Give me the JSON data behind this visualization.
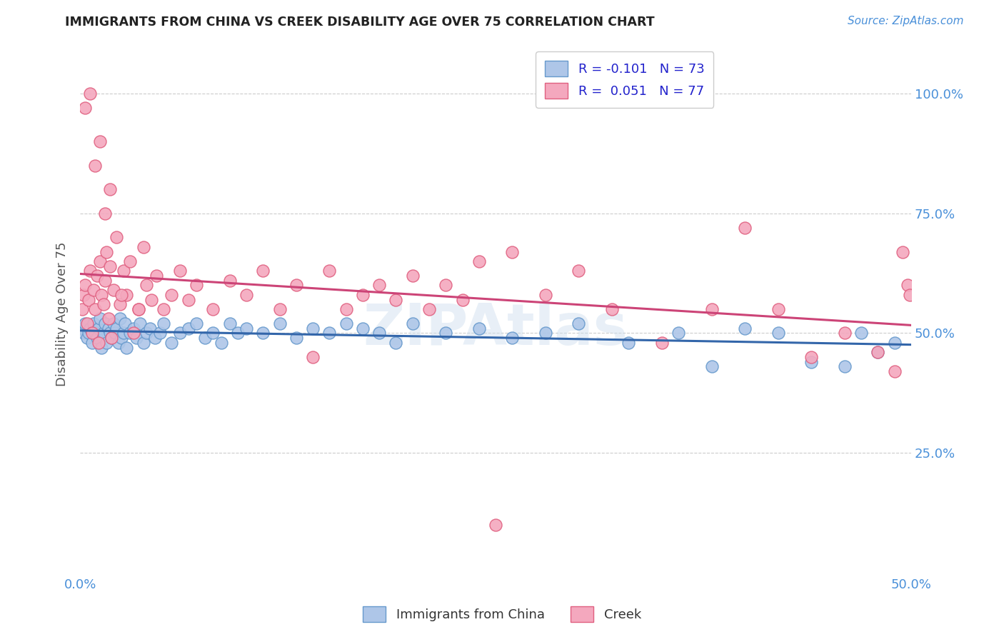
{
  "title": "IMMIGRANTS FROM CHINA VS CREEK DISABILITY AGE OVER 75 CORRELATION CHART",
  "source": "Source: ZipAtlas.com",
  "ylabel": "Disability Age Over 75",
  "ytick_values": [
    0.25,
    0.5,
    0.75,
    1.0
  ],
  "xlim": [
    0.0,
    0.5
  ],
  "ylim": [
    0.0,
    1.08
  ],
  "china_color": "#AEC6E8",
  "china_edge": "#6699CC",
  "creek_color": "#F4A8BE",
  "creek_edge": "#E06080",
  "china_R": -0.101,
  "china_N": 73,
  "creek_R": 0.051,
  "creek_N": 77,
  "watermark": "ZIPAtlas",
  "bg_color": "#FFFFFF",
  "grid_color": "#CCCCCC",
  "axis_color": "#4A90D9",
  "title_color": "#222222",
  "china_line_color": "#3366AA",
  "creek_line_color": "#CC4477",
  "china_x": [
    0.001,
    0.002,
    0.003,
    0.004,
    0.005,
    0.006,
    0.007,
    0.008,
    0.009,
    0.01,
    0.011,
    0.012,
    0.013,
    0.014,
    0.015,
    0.016,
    0.017,
    0.018,
    0.019,
    0.02,
    0.021,
    0.022,
    0.023,
    0.024,
    0.025,
    0.026,
    0.027,
    0.028,
    0.03,
    0.032,
    0.034,
    0.036,
    0.038,
    0.04,
    0.042,
    0.045,
    0.048,
    0.05,
    0.055,
    0.06,
    0.065,
    0.07,
    0.075,
    0.08,
    0.085,
    0.09,
    0.095,
    0.1,
    0.11,
    0.12,
    0.13,
    0.14,
    0.15,
    0.16,
    0.17,
    0.18,
    0.19,
    0.2,
    0.22,
    0.24,
    0.26,
    0.28,
    0.3,
    0.33,
    0.36,
    0.38,
    0.4,
    0.42,
    0.44,
    0.46,
    0.47,
    0.48,
    0.49
  ],
  "china_y": [
    0.51,
    0.5,
    0.52,
    0.49,
    0.5,
    0.51,
    0.48,
    0.52,
    0.5,
    0.49,
    0.51,
    0.53,
    0.47,
    0.5,
    0.52,
    0.48,
    0.51,
    0.5,
    0.49,
    0.52,
    0.5,
    0.51,
    0.48,
    0.53,
    0.49,
    0.5,
    0.52,
    0.47,
    0.5,
    0.51,
    0.49,
    0.52,
    0.48,
    0.5,
    0.51,
    0.49,
    0.5,
    0.52,
    0.48,
    0.5,
    0.51,
    0.52,
    0.49,
    0.5,
    0.48,
    0.52,
    0.5,
    0.51,
    0.5,
    0.52,
    0.49,
    0.51,
    0.5,
    0.52,
    0.51,
    0.5,
    0.48,
    0.52,
    0.5,
    0.51,
    0.49,
    0.5,
    0.52,
    0.48,
    0.5,
    0.43,
    0.51,
    0.5,
    0.44,
    0.43,
    0.5,
    0.46,
    0.48
  ],
  "creek_x": [
    0.001,
    0.002,
    0.003,
    0.004,
    0.005,
    0.006,
    0.007,
    0.008,
    0.009,
    0.01,
    0.011,
    0.012,
    0.013,
    0.014,
    0.015,
    0.016,
    0.017,
    0.018,
    0.019,
    0.02,
    0.022,
    0.024,
    0.026,
    0.028,
    0.03,
    0.032,
    0.035,
    0.038,
    0.04,
    0.043,
    0.046,
    0.05,
    0.055,
    0.06,
    0.065,
    0.07,
    0.08,
    0.09,
    0.1,
    0.11,
    0.12,
    0.13,
    0.14,
    0.15,
    0.16,
    0.17,
    0.18,
    0.19,
    0.2,
    0.21,
    0.22,
    0.23,
    0.24,
    0.25,
    0.26,
    0.28,
    0.3,
    0.32,
    0.35,
    0.38,
    0.4,
    0.42,
    0.44,
    0.46,
    0.48,
    0.49,
    0.495,
    0.498,
    0.499,
    0.003,
    0.006,
    0.009,
    0.012,
    0.015,
    0.018,
    0.025,
    0.035
  ],
  "creek_y": [
    0.55,
    0.58,
    0.6,
    0.52,
    0.57,
    0.63,
    0.5,
    0.59,
    0.55,
    0.62,
    0.48,
    0.65,
    0.58,
    0.56,
    0.61,
    0.67,
    0.53,
    0.64,
    0.49,
    0.59,
    0.7,
    0.56,
    0.63,
    0.58,
    0.65,
    0.5,
    0.55,
    0.68,
    0.6,
    0.57,
    0.62,
    0.55,
    0.58,
    0.63,
    0.57,
    0.6,
    0.55,
    0.61,
    0.58,
    0.63,
    0.55,
    0.6,
    0.45,
    0.63,
    0.55,
    0.58,
    0.6,
    0.57,
    0.62,
    0.55,
    0.6,
    0.57,
    0.65,
    0.1,
    0.67,
    0.58,
    0.63,
    0.55,
    0.48,
    0.55,
    0.72,
    0.55,
    0.45,
    0.5,
    0.46,
    0.42,
    0.67,
    0.6,
    0.58,
    0.97,
    1.0,
    0.85,
    0.9,
    0.75,
    0.8,
    0.58,
    0.55
  ]
}
